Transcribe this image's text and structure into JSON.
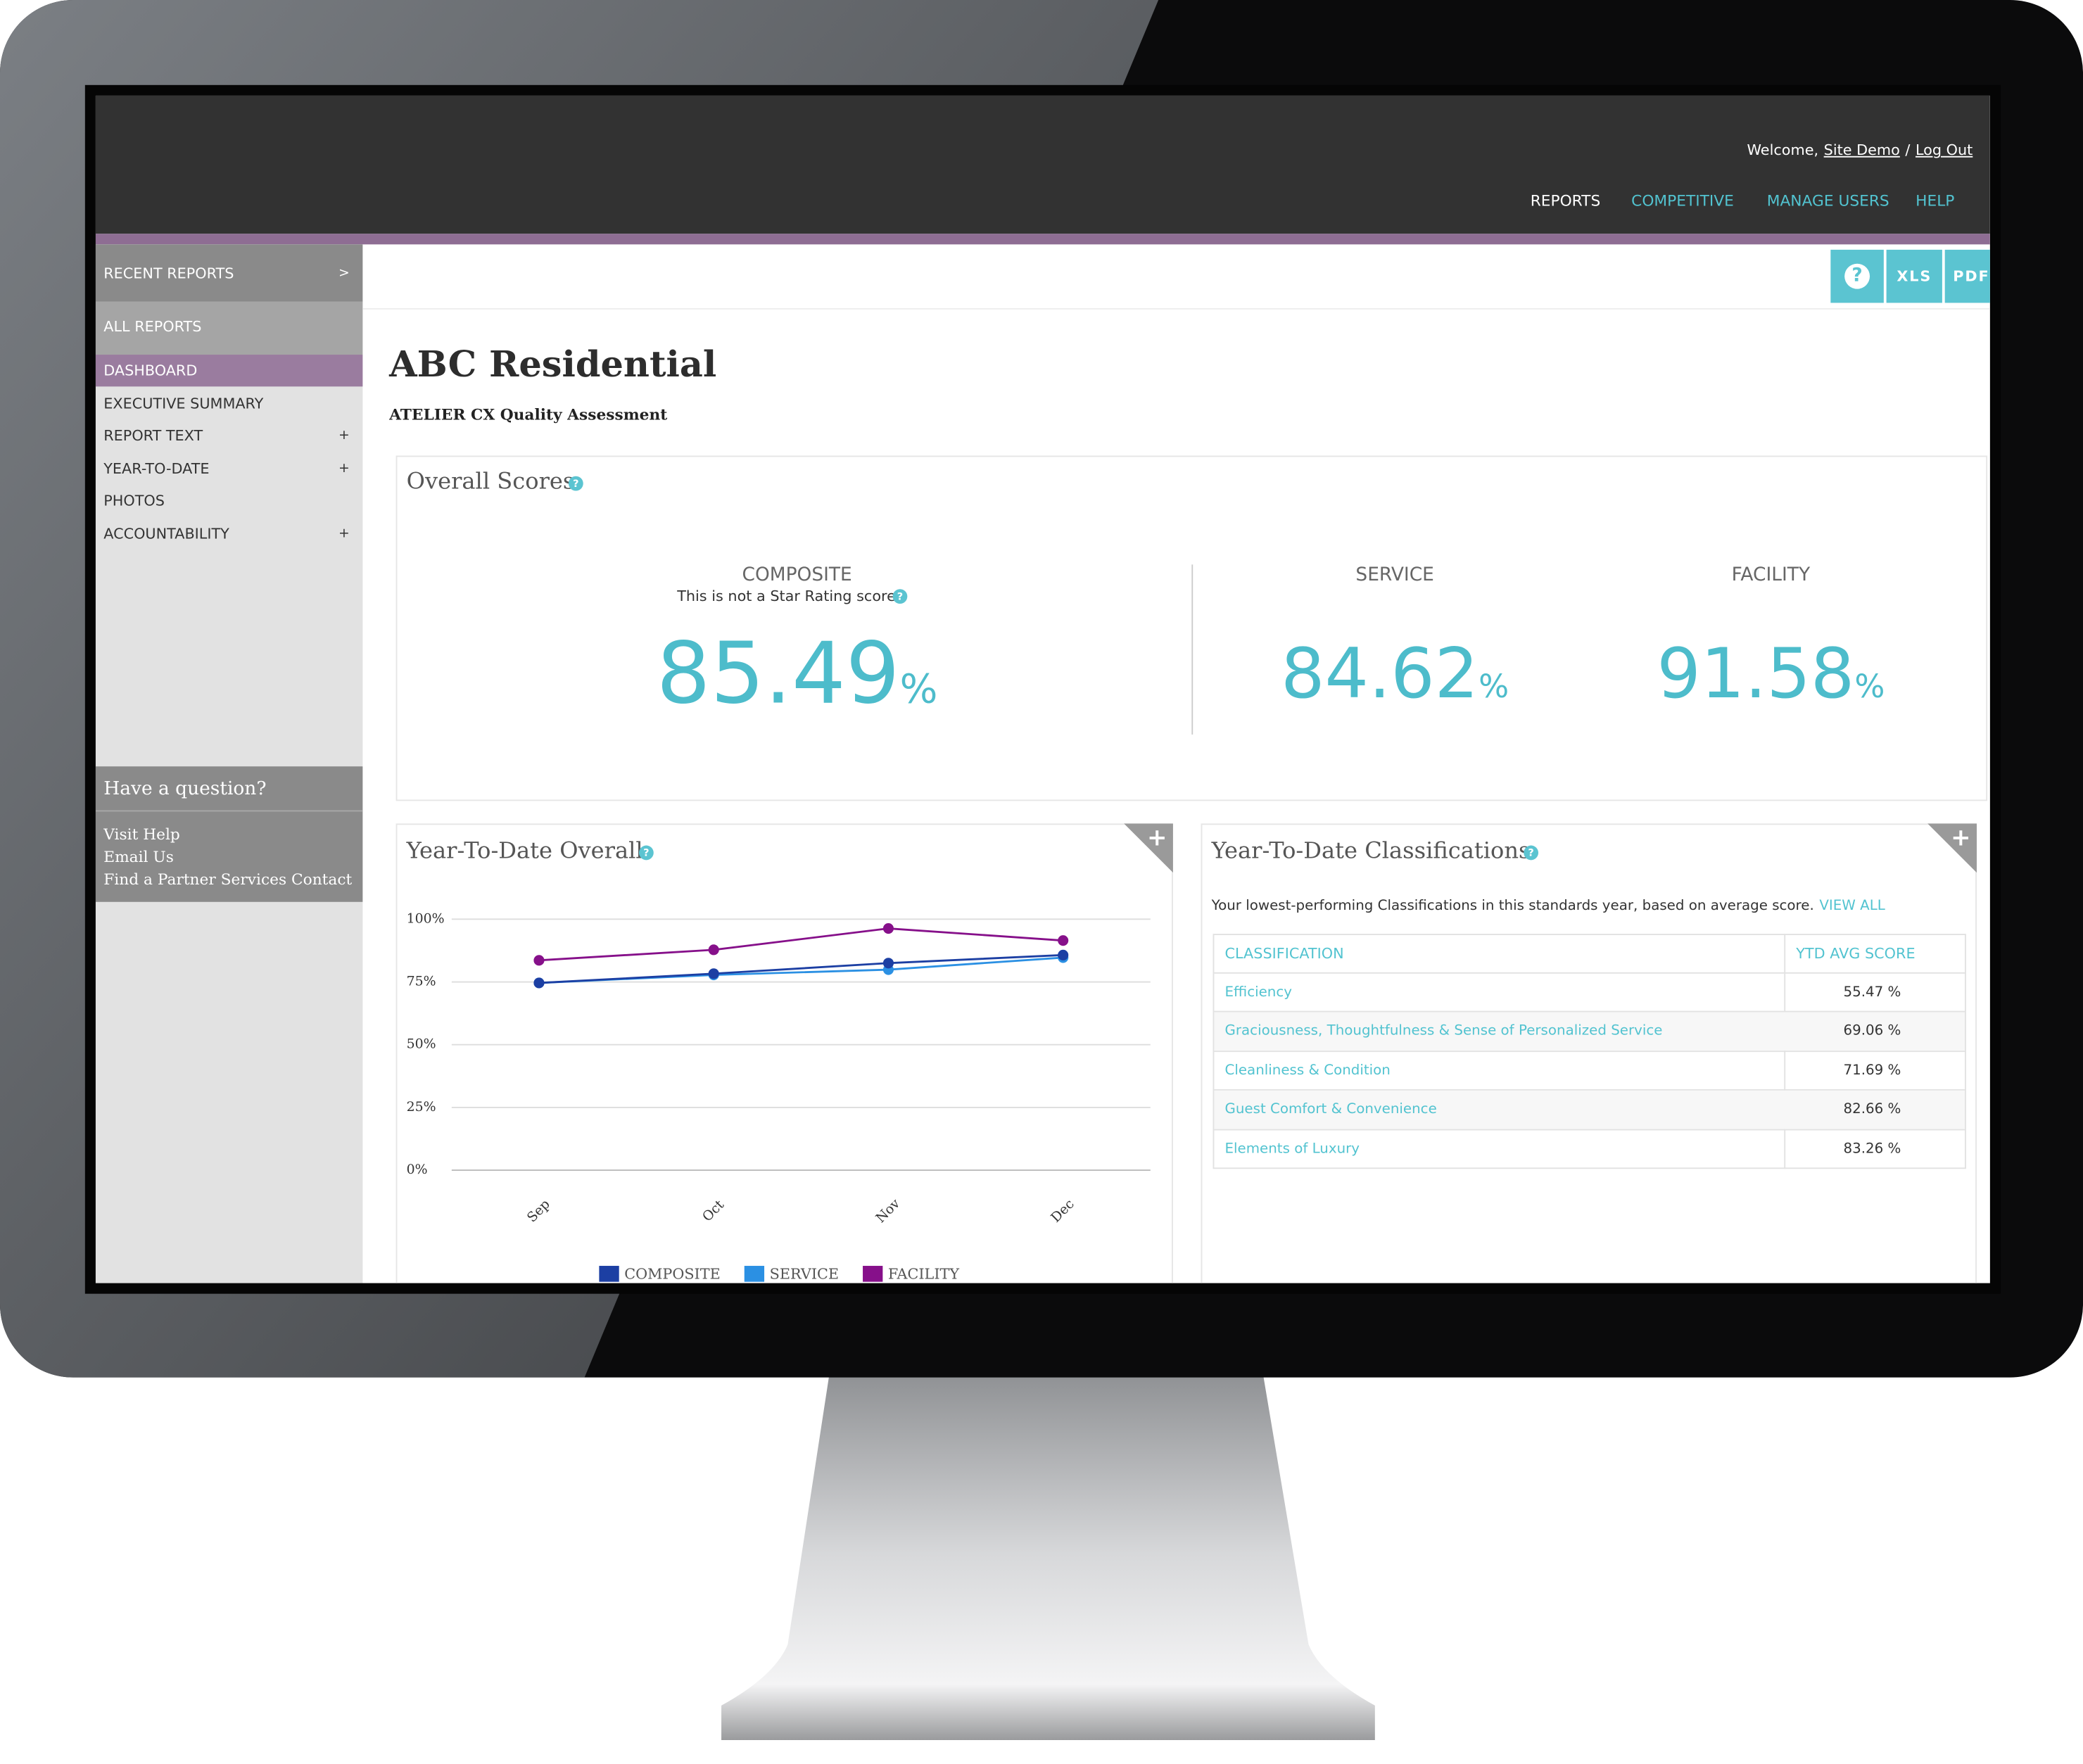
{
  "header": {
    "welcome": "Welcome,",
    "user": "Site Demo",
    "separator": "/",
    "logout": "Log Out",
    "nav": [
      "REPORTS",
      "COMPETITIVE",
      "MANAGE USERS",
      "HELP"
    ]
  },
  "toolbar": [
    "?",
    "XLS",
    "PDF"
  ],
  "sidebar": {
    "items": [
      {
        "label": "RECENT REPORTS",
        "suffix": ">"
      },
      {
        "label": "ALL REPORTS"
      },
      {
        "label": "DASHBOARD"
      },
      {
        "label": "EXECUTIVE SUMMARY"
      },
      {
        "label": "REPORT TEXT",
        "suffix": "+"
      },
      {
        "label": "YEAR-TO-DATE",
        "suffix": "+"
      },
      {
        "label": "PHOTOS"
      },
      {
        "label": "ACCOUNTABILITY",
        "suffix": "+"
      }
    ],
    "help": {
      "title": "Have a question?",
      "links": [
        "Visit Help",
        "Email Us",
        "Find a Partner Services Contact"
      ]
    }
  },
  "page": {
    "title": "ABC Residential",
    "subtitle": "ATELIER CX Quality Assessment"
  },
  "icons": {
    "help": "?",
    "expand": "+"
  },
  "overall": {
    "title": "Overall Scores",
    "unit": "%",
    "scores": [
      {
        "label": "COMPOSITE",
        "note": "This is not a Star Rating score",
        "value": 85.49
      },
      {
        "label": "SERVICE",
        "value": 84.62
      },
      {
        "label": "FACILITY",
        "value": 91.58
      }
    ]
  },
  "chart_data": {
    "type": "line",
    "title": "Year-To-Date Overall",
    "categories": [
      "Sep",
      "Oct",
      "Nov",
      "Dec"
    ],
    "series": [
      {
        "name": "COMPOSITE",
        "color": "#1c3fa3",
        "values": [
          74.6,
          78.3,
          82.5,
          85.7
        ]
      },
      {
        "name": "SERVICE",
        "color": "#2b90e3",
        "values": [
          74.6,
          77.8,
          79.9,
          84.7
        ]
      },
      {
        "name": "FACILITY",
        "color": "#86108a",
        "values": [
          83.6,
          87.8,
          96.3,
          91.5
        ]
      }
    ],
    "ylim": [
      0,
      100
    ],
    "yticks": [
      {
        "value": 0,
        "label": "0%"
      },
      {
        "value": 25,
        "label": "25%"
      },
      {
        "value": 50,
        "label": "50%"
      },
      {
        "value": 75,
        "label": "75%"
      },
      {
        "value": 100,
        "label": "100%"
      }
    ],
    "grid": true
  },
  "classifications": {
    "title": "Year-To-Date Classifications",
    "description": "Your lowest-performing Classifications in this standards year, based on average score.",
    "link": "VIEW ALL",
    "columns": [
      "CLASSIFICATION",
      "YTD AVG SCORE"
    ],
    "rows": [
      [
        "Efficiency",
        "55.47 %"
      ],
      [
        "Graciousness, Thoughtfulness & Sense of Personalized Service",
        "69.06 %"
      ],
      [
        "Cleanliness & Condition",
        "71.69 %"
      ],
      [
        "Guest Comfort & Convenience",
        "82.66 %"
      ],
      [
        "Elements of Luxury",
        "83.26 %"
      ]
    ]
  }
}
